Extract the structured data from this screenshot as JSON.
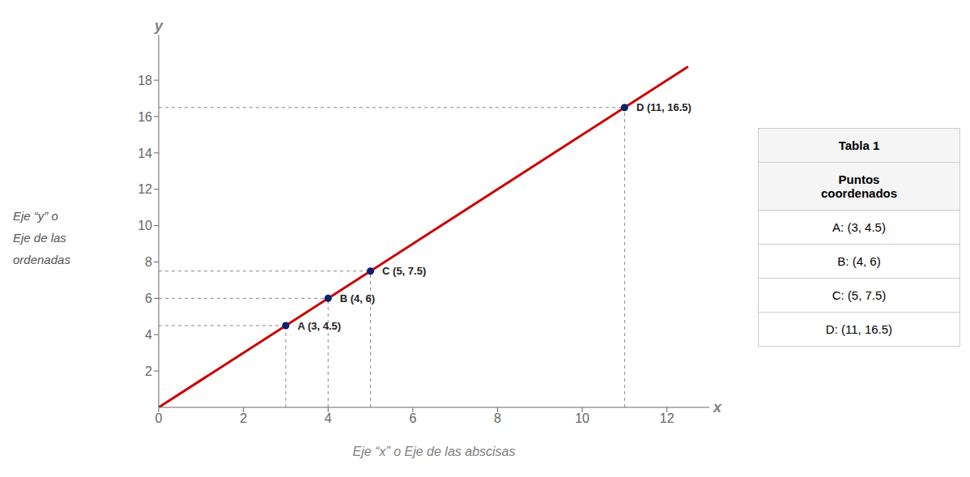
{
  "chart_data": {
    "type": "scatter",
    "xlabel": "Eje “x” o Eje de las abscisas",
    "ylabel": "Eje “y” o\nEje de las\nordenadas",
    "annotations": [
      "y",
      "x"
    ],
    "xlim": [
      0,
      13.0
    ],
    "ylim": [
      0,
      20.5
    ],
    "xticks": [
      0,
      2,
      4,
      6,
      8,
      10,
      12
    ],
    "yticks": [
      2,
      4,
      6,
      8,
      10,
      12,
      14,
      16,
      18
    ],
    "grid": false,
    "series": [
      {
        "type": "line",
        "color": "#CC0000",
        "x": [
          0,
          12.5
        ],
        "values": [
          0,
          18.75
        ]
      },
      {
        "type": "scatter",
        "color": "#0a1f6e",
        "x": [
          3,
          4,
          5,
          11
        ],
        "values": [
          4.5,
          6,
          7.5,
          16.5
        ],
        "value_labels": [
          "A (3, 4.5)",
          "B (4, 6)",
          "C (5, 7.5)",
          "D (11, 16.5)"
        ],
        "data_labels": true
      }
    ],
    "table": {
      "title": "Tabla 1",
      "header": "Puntos\ncoordenados",
      "rows": [
        "A:  (3, 4.5)",
        "B:  (4, 6)",
        "C:  (5, 7.5)",
        "D:  (11, 16.5)"
      ]
    }
  }
}
